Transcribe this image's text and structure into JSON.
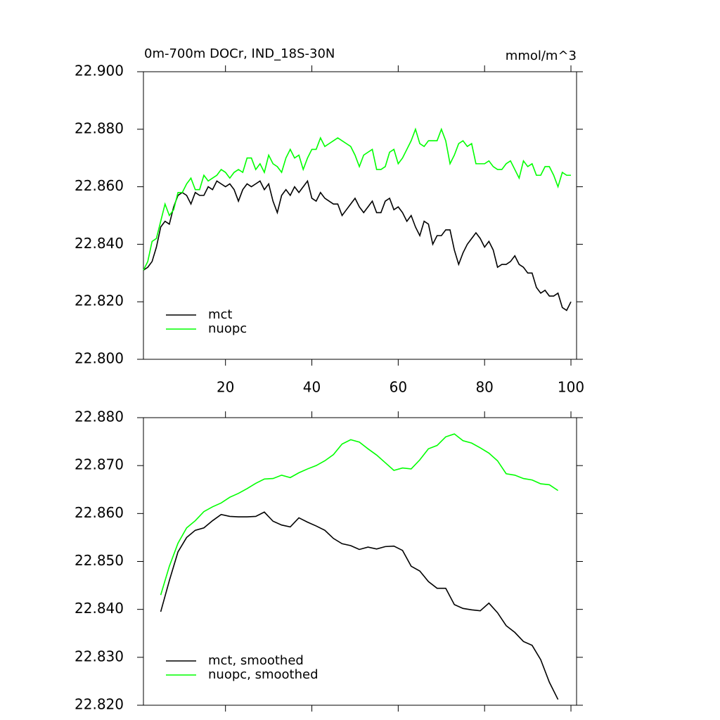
{
  "chart_data": [
    {
      "type": "line",
      "title": "0m-700m DOCr, IND_18S-30N",
      "units_label": "mmol/m^3",
      "x": [
        1,
        2,
        3,
        4,
        5,
        6,
        7,
        8,
        9,
        10,
        11,
        12,
        13,
        14,
        15,
        16,
        17,
        18,
        19,
        20,
        21,
        22,
        23,
        24,
        25,
        26,
        27,
        28,
        29,
        30,
        31,
        32,
        33,
        34,
        35,
        36,
        37,
        38,
        39,
        40,
        41,
        42,
        43,
        44,
        45,
        46,
        47,
        48,
        49,
        50,
        51,
        52,
        53,
        54,
        55,
        56,
        57,
        58,
        59,
        60,
        61,
        62,
        63,
        64,
        65,
        66,
        67,
        68,
        69,
        70,
        71,
        72,
        73,
        74,
        75,
        76,
        77,
        78,
        79,
        80,
        81,
        82,
        83,
        84,
        85,
        86,
        87,
        88,
        89,
        90,
        91,
        92,
        93,
        94,
        95,
        96,
        97,
        98,
        99,
        100
      ],
      "series": [
        {
          "name": "mct",
          "color": "#000000",
          "values": [
            22.831,
            22.832,
            22.834,
            22.839,
            22.846,
            22.848,
            22.847,
            22.853,
            22.857,
            22.858,
            22.857,
            22.854,
            22.858,
            22.857,
            22.857,
            22.86,
            22.859,
            22.862,
            22.861,
            22.86,
            22.861,
            22.859,
            22.855,
            22.859,
            22.861,
            22.86,
            22.861,
            22.862,
            22.859,
            22.861,
            22.855,
            22.851,
            22.857,
            22.859,
            22.857,
            22.86,
            22.858,
            22.86,
            22.862,
            22.856,
            22.855,
            22.858,
            22.856,
            22.855,
            22.854,
            22.854,
            22.85,
            22.852,
            22.854,
            22.856,
            22.853,
            22.851,
            22.853,
            22.855,
            22.851,
            22.851,
            22.855,
            22.856,
            22.852,
            22.853,
            22.851,
            22.848,
            22.85,
            22.846,
            22.843,
            22.848,
            22.847,
            22.84,
            22.843,
            22.843,
            22.845,
            22.845,
            22.838,
            22.833,
            22.837,
            22.84,
            22.842,
            22.844,
            22.842,
            22.839,
            22.841,
            22.838,
            22.832,
            22.833,
            22.833,
            22.834,
            22.836,
            22.833,
            22.832,
            22.83,
            22.83,
            22.825,
            22.823,
            22.824,
            22.822,
            22.822,
            22.823,
            22.818,
            22.817,
            22.82
          ]
        },
        {
          "name": "nuopc",
          "color": "#00ff00",
          "values": [
            22.831,
            22.834,
            22.841,
            22.842,
            22.848,
            22.854,
            22.85,
            22.852,
            22.858,
            22.858,
            22.861,
            22.863,
            22.859,
            22.859,
            22.864,
            22.862,
            22.863,
            22.864,
            22.866,
            22.865,
            22.863,
            22.865,
            22.866,
            22.865,
            22.87,
            22.87,
            22.866,
            22.868,
            22.865,
            22.871,
            22.868,
            22.867,
            22.865,
            22.87,
            22.873,
            22.87,
            22.871,
            22.866,
            22.87,
            22.873,
            22.873,
            22.877,
            22.874,
            22.875,
            22.876,
            22.877,
            22.876,
            22.875,
            22.874,
            22.871,
            22.867,
            22.871,
            22.872,
            22.873,
            22.866,
            22.866,
            22.867,
            22.872,
            22.873,
            22.868,
            22.87,
            22.873,
            22.876,
            22.88,
            22.875,
            22.874,
            22.876,
            22.876,
            22.876,
            22.88,
            22.876,
            22.868,
            22.871,
            22.875,
            22.876,
            22.874,
            22.875,
            22.868,
            22.868,
            22.868,
            22.869,
            22.867,
            22.866,
            22.866,
            22.868,
            22.869,
            22.866,
            22.863,
            22.869,
            22.867,
            22.868,
            22.864,
            22.864,
            22.867,
            22.867,
            22.864,
            22.86,
            22.865,
            22.864,
            22.864
          ]
        }
      ],
      "xlim": [
        1,
        101.3
      ],
      "xticks": [
        20,
        40,
        60,
        80,
        100
      ],
      "xtick_labels": true,
      "ylim": [
        22.8,
        22.9
      ],
      "yticks": [
        {
          "value": 22.8,
          "label": "22.800"
        },
        {
          "value": 22.82,
          "label": "22.820"
        },
        {
          "value": 22.84,
          "label": "22.840"
        },
        {
          "value": 22.86,
          "label": "22.860"
        },
        {
          "value": 22.88,
          "label": "22.880"
        },
        {
          "value": 22.9,
          "label": "22.900"
        }
      ],
      "legend": "bottom-left"
    },
    {
      "type": "line",
      "x": [
        5,
        7,
        9,
        11,
        13,
        15,
        17,
        19,
        21,
        23,
        25,
        27,
        29,
        31,
        33,
        35,
        37,
        39,
        41,
        43,
        45,
        47,
        49,
        51,
        53,
        55,
        57,
        59,
        61,
        63,
        65,
        67,
        69,
        71,
        73,
        75,
        77,
        79,
        81,
        83,
        85,
        87,
        89,
        91,
        93,
        95,
        97
      ],
      "series": [
        {
          "name": "mct, smoothed",
          "color": "#000000",
          "values": [
            22.8395,
            22.846,
            22.852,
            22.855,
            22.8565,
            22.857,
            22.8585,
            22.8598,
            22.8594,
            22.8593,
            22.8593,
            22.8594,
            22.8603,
            22.8584,
            22.8576,
            22.8572,
            22.8591,
            22.8582,
            22.8574,
            22.8565,
            22.8548,
            22.8537,
            22.8533,
            22.8525,
            22.853,
            22.8526,
            22.8531,
            22.8532,
            22.8523,
            22.849,
            22.848,
            22.8458,
            22.8444,
            22.8444,
            22.841,
            22.8402,
            22.8399,
            22.8397,
            22.8413,
            22.8393,
            22.8366,
            22.8352,
            22.8333,
            22.8325,
            22.8295,
            22.8248,
            22.8212
          ]
        },
        {
          "name": "nuopc, smoothed",
          "color": "#00ff00",
          "values": [
            22.843,
            22.849,
            22.8538,
            22.857,
            22.8585,
            22.8604,
            22.8614,
            22.8622,
            22.8634,
            22.8642,
            22.8652,
            22.8663,
            22.8672,
            22.8673,
            22.868,
            22.8675,
            22.8685,
            22.8693,
            22.87,
            22.871,
            22.8723,
            22.8745,
            22.8754,
            22.8749,
            22.8735,
            22.8722,
            22.8706,
            22.869,
            22.8695,
            22.8693,
            22.8712,
            22.8735,
            22.8742,
            22.876,
            22.8766,
            22.8752,
            22.8747,
            22.8737,
            22.8726,
            22.871,
            22.8683,
            22.868,
            22.8673,
            22.867,
            22.8662,
            22.866,
            22.8648
          ]
        }
      ],
      "xlim": [
        1,
        101.3
      ],
      "xticks": [
        20,
        40,
        60,
        80,
        100
      ],
      "xtick_labels": false,
      "ylim": [
        22.82,
        22.88
      ],
      "yticks": [
        {
          "value": 22.82,
          "label": "22.820"
        },
        {
          "value": 22.83,
          "label": "22.830"
        },
        {
          "value": 22.84,
          "label": "22.840"
        },
        {
          "value": 22.85,
          "label": "22.850"
        },
        {
          "value": 22.86,
          "label": "22.860"
        },
        {
          "value": 22.87,
          "label": "22.870"
        },
        {
          "value": 22.88,
          "label": "22.880"
        }
      ],
      "legend": "bottom-left"
    }
  ]
}
